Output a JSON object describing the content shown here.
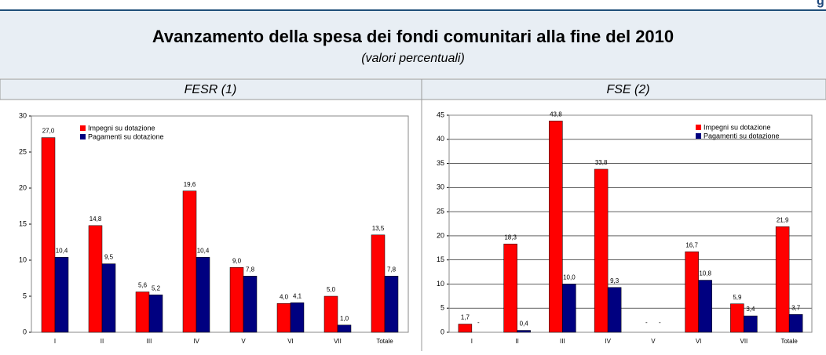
{
  "header": {
    "title": "Avanzamento della spesa dei fondi comunitari alla fine del 2010",
    "subtitle": "(valori percentuali)",
    "corner": "g"
  },
  "chart_data": [
    {
      "type": "bar",
      "title": "FESR (1)",
      "categories": [
        "I",
        "II",
        "III",
        "IV",
        "V",
        "VI",
        "VII",
        "Totale"
      ],
      "series": [
        {
          "name": "Impegni su dotazione",
          "color": "#ff0000",
          "values": [
            27.0,
            14.8,
            5.6,
            19.6,
            9.0,
            4.0,
            5.0,
            13.5
          ],
          "value_labels": [
            "27,0",
            "14,8",
            "5,6",
            "19,6",
            "9,0",
            "4,0",
            "5,0",
            "13,5"
          ]
        },
        {
          "name": "Pagamenti su dotazione",
          "color": "#000080",
          "values": [
            10.4,
            9.5,
            5.2,
            10.4,
            7.8,
            4.1,
            1.0,
            7.8
          ],
          "value_labels": [
            "10,4",
            "9,5",
            "5,2",
            "10,4",
            "7,8",
            "4,1",
            "1,0",
            "7,8"
          ]
        }
      ],
      "ylim": [
        0,
        30
      ],
      "yticks": [
        0,
        5,
        10,
        15,
        20,
        25,
        30
      ],
      "grid": false,
      "legend": "upper left"
    },
    {
      "type": "bar",
      "title": "FSE (2)",
      "categories": [
        "I",
        "II",
        "III",
        "IV",
        "V",
        "VI",
        "VII",
        "Totale"
      ],
      "series": [
        {
          "name": "Impegni su dotazione",
          "color": "#ff0000",
          "values": [
            1.7,
            18.3,
            43.8,
            33.8,
            null,
            16.7,
            5.9,
            21.9
          ],
          "value_labels": [
            "1,7",
            "18,3",
            "43,8",
            "33,8",
            "-",
            "16,7",
            "5,9",
            "21,9"
          ]
        },
        {
          "name": "Pagamenti su dotazione",
          "color": "#000080",
          "values": [
            null,
            0.4,
            10.0,
            9.3,
            null,
            10.8,
            3.4,
            3.7
          ],
          "value_labels": [
            "-",
            "0,4",
            "10,0",
            "9,3",
            "-",
            "10,8",
            "3,4",
            "3,7"
          ]
        }
      ],
      "ylim": [
        0,
        45
      ],
      "yticks": [
        0,
        5,
        10,
        15,
        20,
        25,
        30,
        35,
        40,
        45
      ],
      "grid": true,
      "legend": "upper right"
    }
  ]
}
